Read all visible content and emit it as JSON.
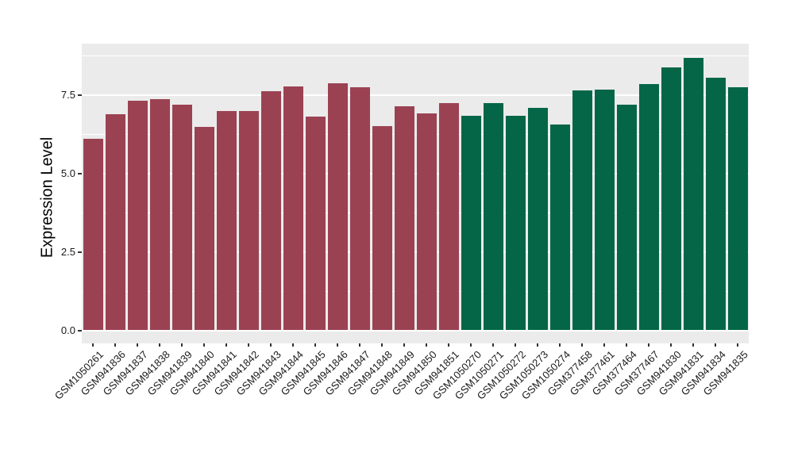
{
  "chart": {
    "ylabel": "Expression Level",
    "panel_bg": "#EBEBEB",
    "grid_color": "#FFFFFF",
    "tick_color": "#333333",
    "text_color": "#1a1a1a",
    "group_colors": {
      "group1": "#9B4252",
      "group2": "#046647"
    }
  },
  "chart_data": {
    "type": "bar",
    "title": "",
    "xlabel": "",
    "ylabel": "Expression Level",
    "ylim": [
      -0.46,
      9.14
    ],
    "grid": true,
    "legend": false,
    "yticks": [
      {
        "label": "0.0",
        "value": 0.0
      },
      {
        "label": "2.5",
        "value": 2.5
      },
      {
        "label": "5.0",
        "value": 5.0
      },
      {
        "label": "7.5",
        "value": 7.5
      }
    ],
    "yticks_minor": [
      1.25,
      3.75,
      6.25,
      8.75
    ],
    "categories": [
      "GSM1050261",
      "GSM941836",
      "GSM941837",
      "GSM941838",
      "GSM941839",
      "GSM941840",
      "GSM941841",
      "GSM941842",
      "GSM941843",
      "GSM941844",
      "GSM941845",
      "GSM941846",
      "GSM941847",
      "GSM941848",
      "GSM941849",
      "GSM941850",
      "GSM941851",
      "GSM1050270",
      "GSM1050271",
      "GSM1050272",
      "GSM1050273",
      "GSM1050274",
      "GSM377458",
      "GSM377461",
      "GSM377464",
      "GSM377467",
      "GSM941830",
      "GSM941831",
      "GSM941834",
      "GSM941835"
    ],
    "values": [
      6.1,
      6.9,
      7.33,
      7.37,
      7.2,
      6.48,
      7.0,
      6.98,
      7.62,
      7.78,
      6.81,
      7.88,
      7.76,
      6.5,
      7.13,
      6.92,
      7.24,
      6.85,
      7.25,
      6.83,
      7.1,
      6.57,
      7.64,
      7.67,
      7.2,
      7.85,
      8.38,
      8.68,
      8.06,
      7.75
    ],
    "groups": [
      "group1",
      "group1",
      "group1",
      "group1",
      "group1",
      "group1",
      "group1",
      "group1",
      "group1",
      "group1",
      "group1",
      "group1",
      "group1",
      "group1",
      "group1",
      "group1",
      "group1",
      "group2",
      "group2",
      "group2",
      "group2",
      "group2",
      "group2",
      "group2",
      "group2",
      "group2",
      "group2",
      "group2",
      "group2",
      "group2"
    ]
  }
}
